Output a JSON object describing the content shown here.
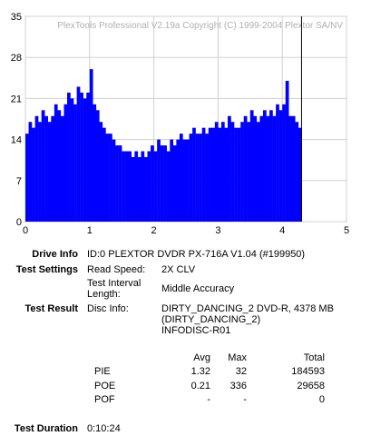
{
  "chart_data": {
    "type": "bar",
    "watermark": "PlexTools Professional V2.19a Copyright (C) 1999-2004 Plextor SA/NV",
    "xlim": [
      0,
      5
    ],
    "ylim": [
      0,
      35
    ],
    "xticks": [
      0,
      1,
      2,
      3,
      4,
      5
    ],
    "yticks": [
      0,
      7,
      14,
      21,
      28,
      35
    ],
    "grid": true,
    "end_marker_x": 4.3,
    "color": "#0000ff",
    "series": [
      {
        "name": "PIE",
        "x_step": 0.05,
        "values": [
          15,
          17,
          16,
          18,
          17,
          19,
          18,
          17,
          18,
          20,
          19,
          18,
          20,
          22,
          21,
          20,
          23,
          22,
          21,
          22,
          26,
          20,
          19,
          17,
          16,
          15,
          15,
          14,
          13,
          13,
          12,
          12,
          12,
          11,
          12,
          11,
          12,
          11,
          12,
          13,
          12,
          14,
          13,
          13,
          12,
          14,
          13,
          14,
          15,
          14,
          14,
          15,
          16,
          15,
          15,
          16,
          15,
          16,
          16,
          17,
          16,
          17,
          16,
          18,
          17,
          16,
          16,
          17,
          18,
          17,
          19,
          18,
          17,
          18,
          19,
          18,
          19,
          18,
          20,
          19,
          20,
          24,
          18,
          18,
          17,
          16
        ]
      }
    ]
  },
  "info": {
    "drive_info_label": "Drive Info",
    "drive_info_value": "ID:0 PLEXTOR DVDR PX-716A V1.04 (#199950)",
    "test_settings_label": "Test Settings",
    "read_speed_label": "Read Speed:",
    "read_speed_value": "2X CLV",
    "interval_label_1": "Test Interval",
    "interval_label_2": "Length:",
    "interval_value": "Middle Accuracy",
    "test_result_label": "Test Result",
    "disc_info_label": "Disc Info:",
    "disc_info_line1": "DIRTY_DANCING_2 DVD-R, 4378 MB",
    "disc_info_line2": "(DIRTY_DANCING_2)",
    "disc_info_line3": "INFODISC-R01"
  },
  "table": {
    "headers": {
      "avg": "Avg",
      "max": "Max",
      "total": "Total"
    },
    "rows": [
      {
        "name": "PIE",
        "avg": "1.32",
        "max": "32",
        "total": "184593"
      },
      {
        "name": "POE",
        "avg": "0.21",
        "max": "336",
        "total": "29658"
      },
      {
        "name": "POF",
        "avg": "-",
        "max": "-",
        "total": "0"
      }
    ]
  },
  "duration": {
    "label": "Test Duration",
    "value": "0:10:24"
  }
}
